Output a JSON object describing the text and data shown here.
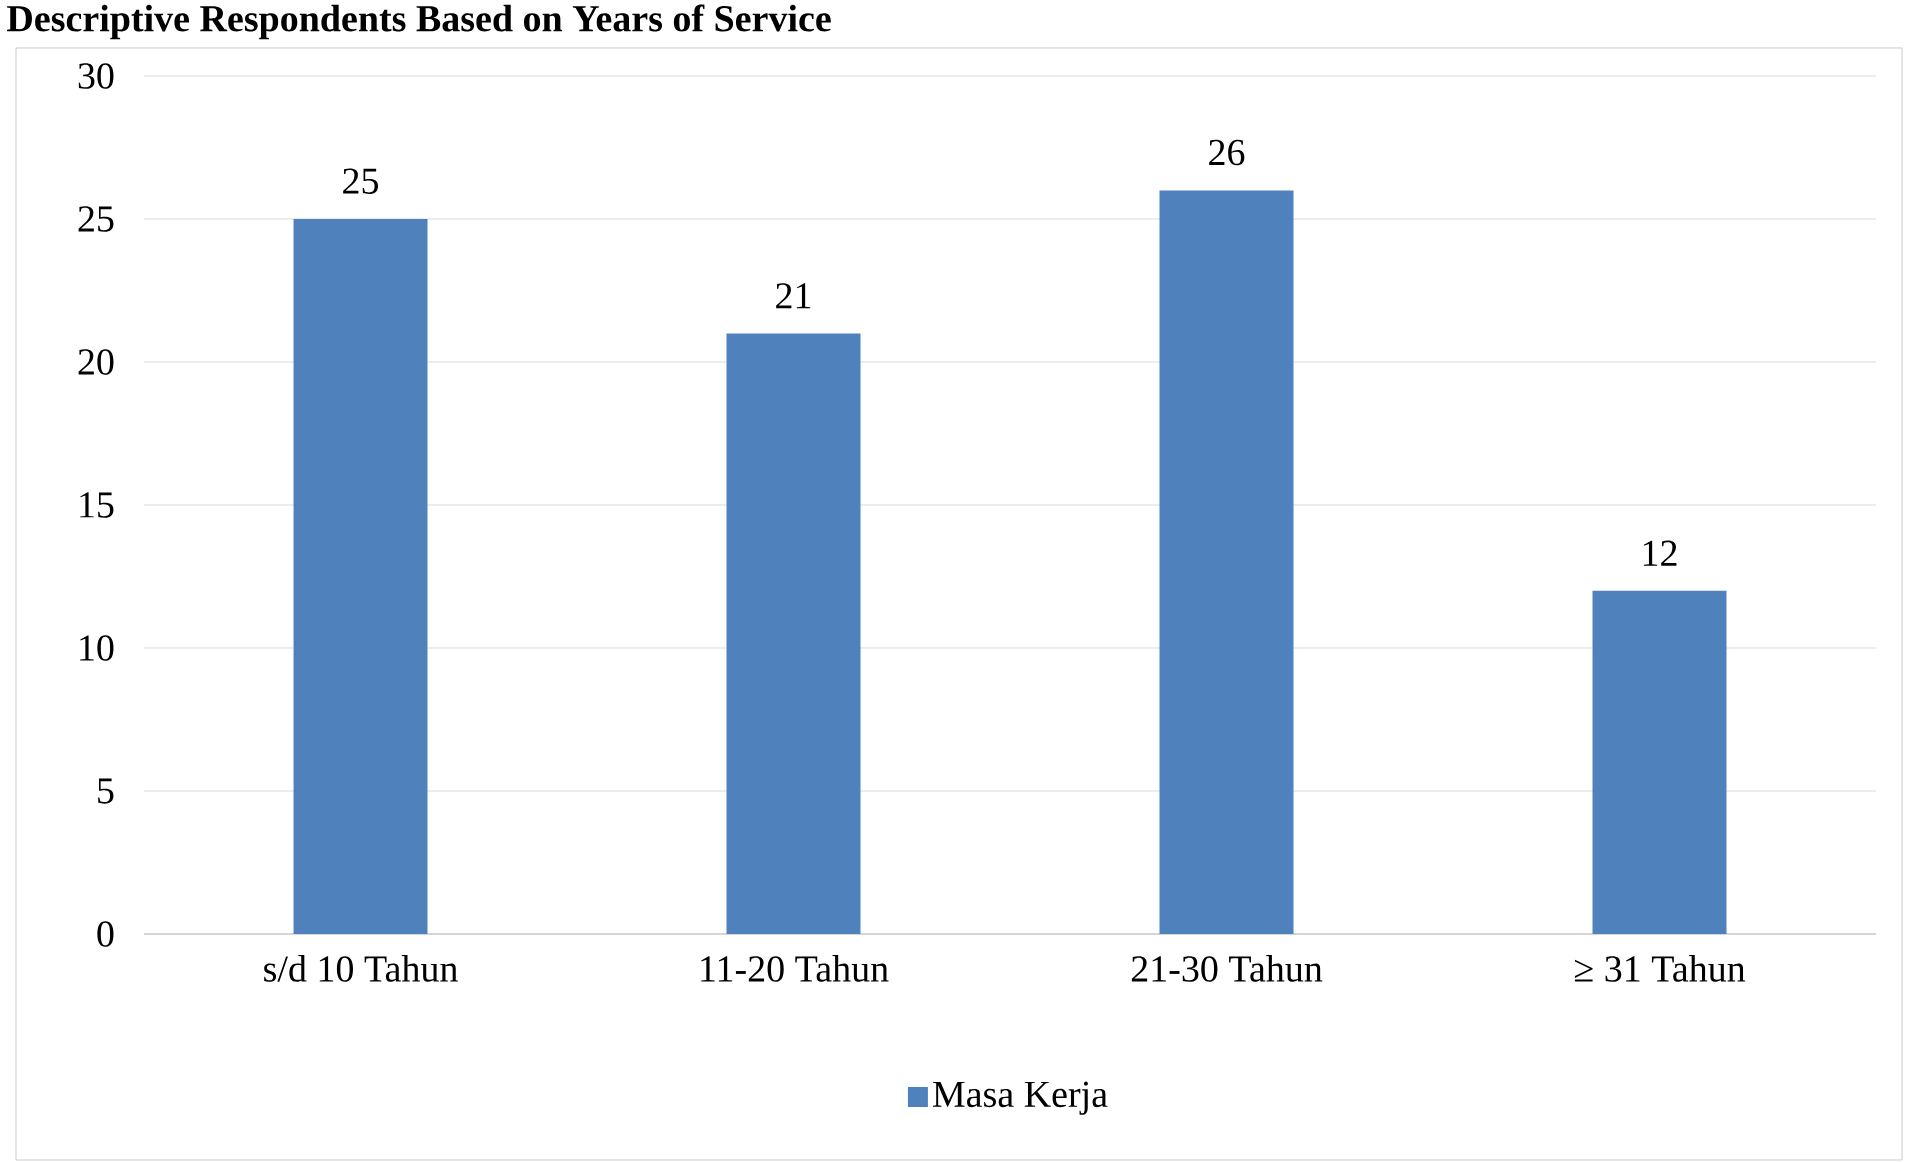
{
  "chart_data": {
    "type": "bar",
    "title": "Descriptive Respondents Based on Years of Service",
    "categories": [
      "s/d 10 Tahun",
      "11-20 Tahun",
      "21-30 Tahun",
      "≥ 31 Tahun"
    ],
    "series": [
      {
        "name": "Masa Kerja",
        "color": "#4f81bd",
        "values": [
          25,
          21,
          26,
          12
        ]
      }
    ],
    "ylim": [
      0,
      30
    ],
    "yticks": [
      0,
      5,
      10,
      15,
      20,
      25,
      30
    ],
    "grid": "y",
    "legend": "bottom",
    "data_labels": true
  }
}
